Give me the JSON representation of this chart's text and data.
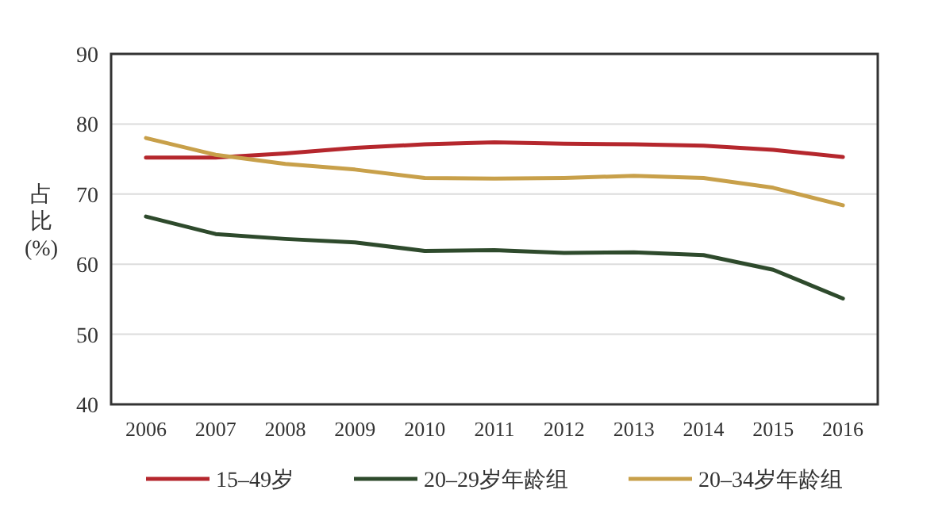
{
  "chart_data": {
    "type": "line",
    "ylabel": "占比(%)",
    "categories": [
      "2006",
      "2007",
      "2008",
      "2009",
      "2010",
      "2011",
      "2012",
      "2013",
      "2014",
      "2015",
      "2016"
    ],
    "series": [
      {
        "name": "15–49岁",
        "color": "#b5272d",
        "values": [
          75.2,
          75.2,
          75.8,
          76.6,
          77.1,
          77.4,
          77.2,
          77.1,
          76.9,
          76.3,
          75.3
        ]
      },
      {
        "name": "20–29岁年龄组",
        "color": "#2e4a2c",
        "values": [
          66.8,
          64.3,
          63.6,
          63.1,
          61.9,
          62.0,
          61.6,
          61.7,
          61.3,
          59.2,
          55.1
        ]
      },
      {
        "name": "20–34岁年龄组",
        "color": "#c8a04a",
        "values": [
          78.0,
          75.6,
          74.3,
          73.5,
          72.3,
          72.2,
          72.3,
          72.6,
          72.3,
          70.9,
          68.4
        ]
      }
    ],
    "ylim": [
      40,
      90
    ],
    "yticks": [
      40,
      50,
      60,
      70,
      80,
      90
    ],
    "grid": "y",
    "legend": "bottom",
    "marker": "none",
    "line_style": "solid"
  }
}
